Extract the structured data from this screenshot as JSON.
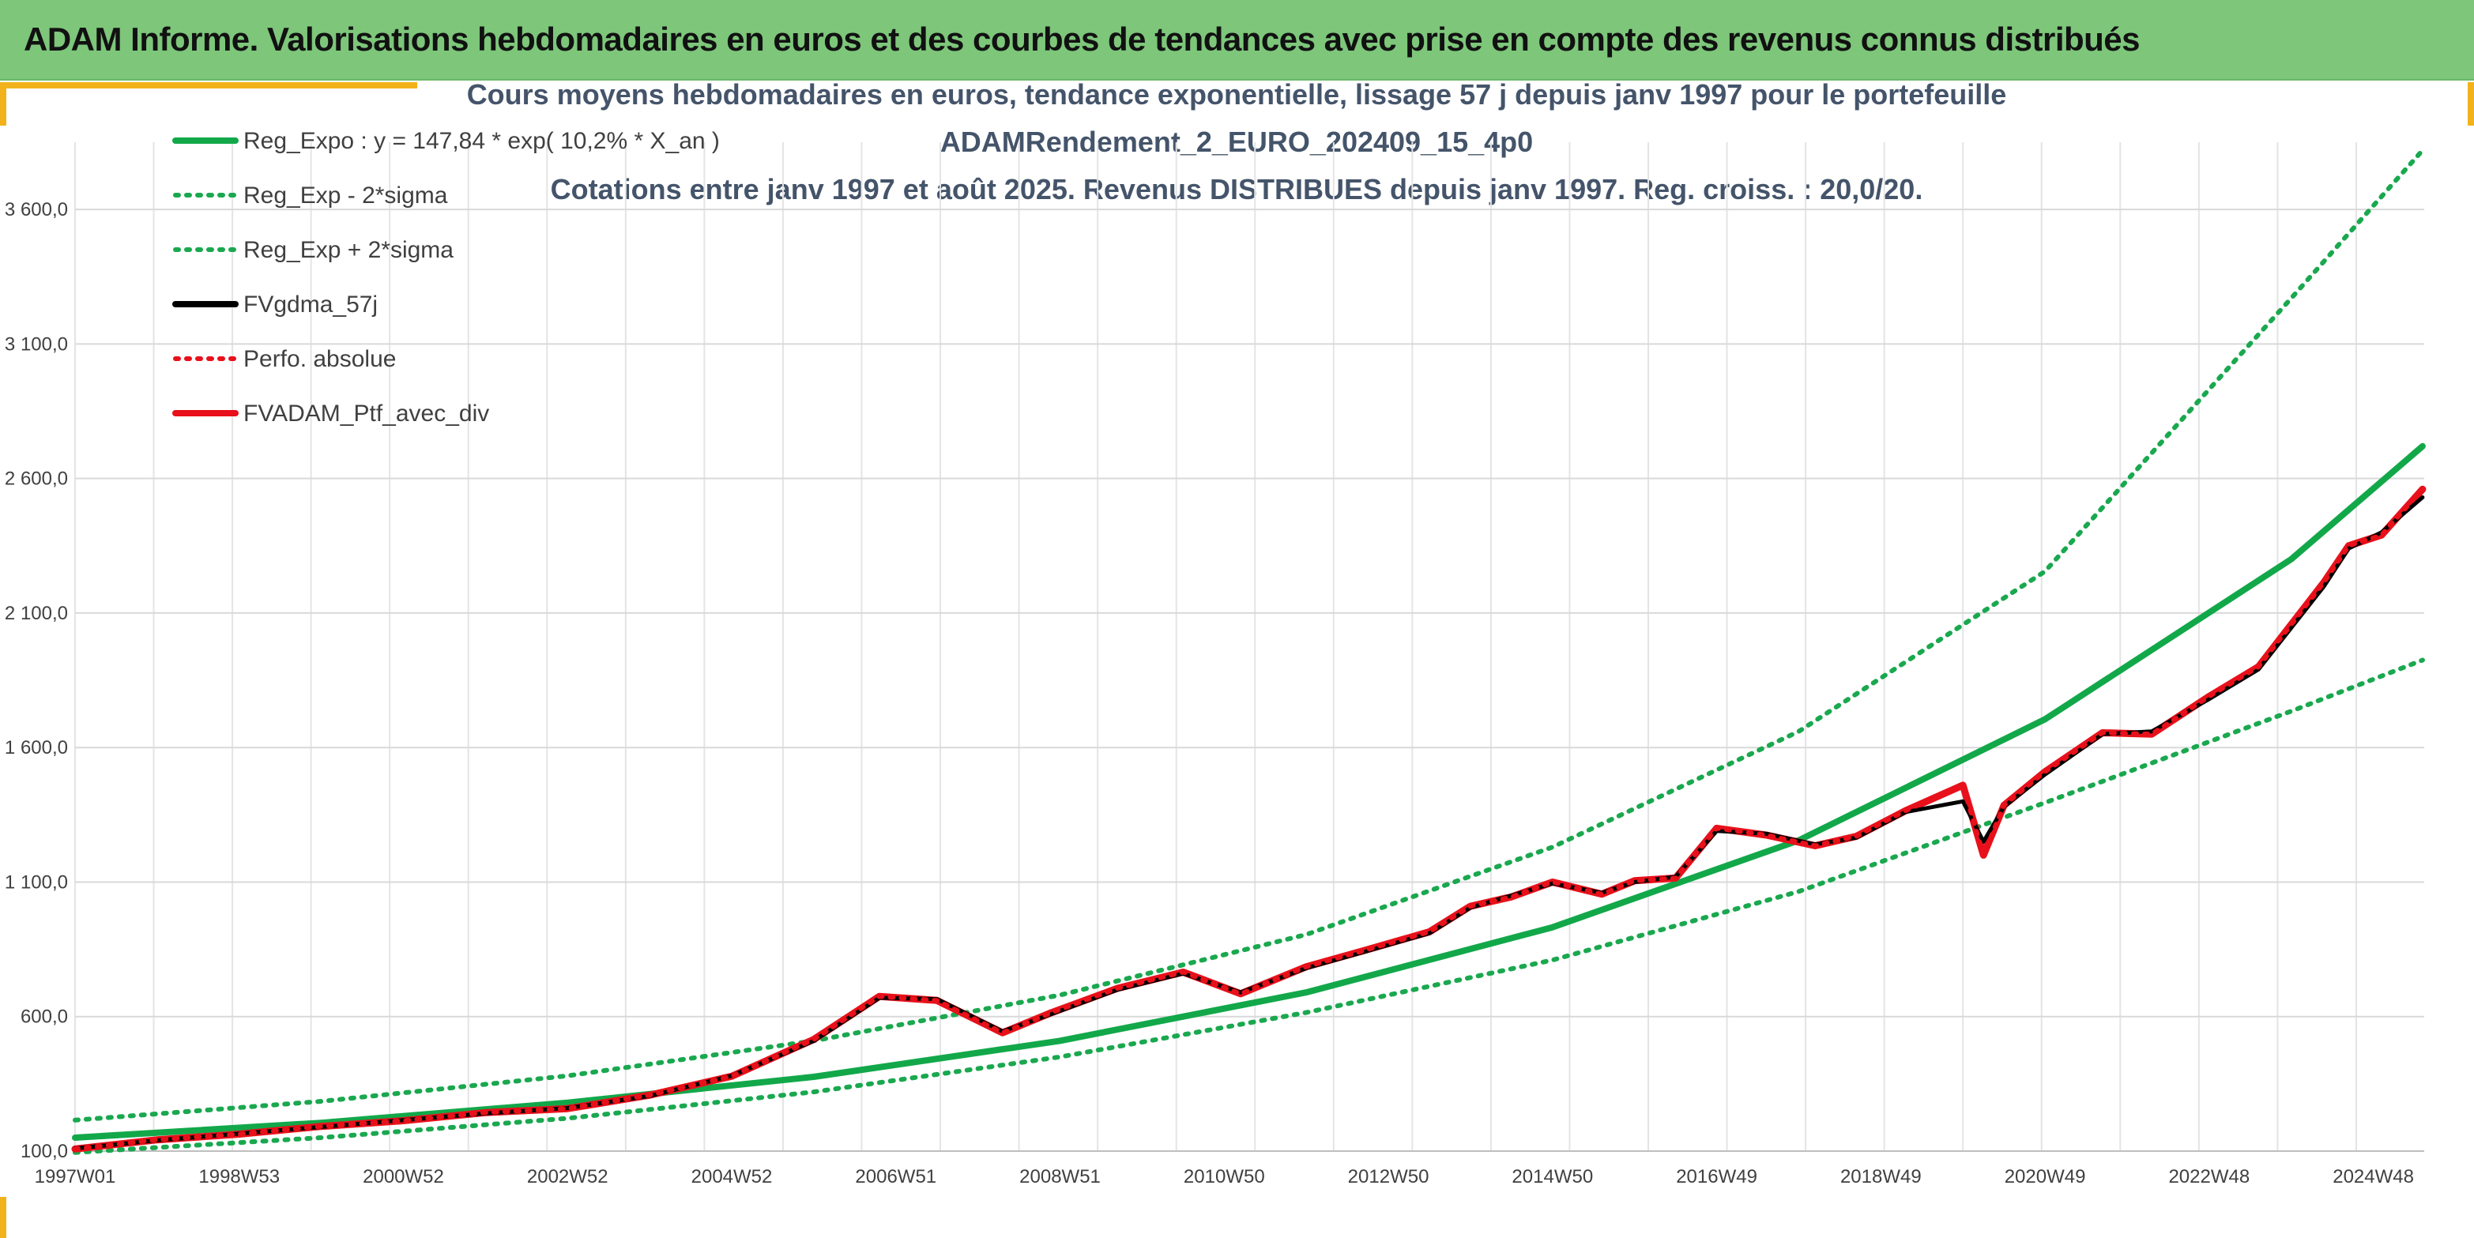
{
  "banner": {
    "title": "ADAM Informe. Valorisations hebdomadaires en euros et des courbes de tendances avec prise en compte des revenus connus distribués"
  },
  "colors": {
    "banner_bg": "#7dc67a",
    "accent_corner": "#f2b21b",
    "reg_expo": "#12a84a",
    "reg_bands": "#1aa84f",
    "fvgdma": "#000000",
    "perfo": "#e8101a",
    "ptf": "#e8101a"
  },
  "chart_data": {
    "type": "line",
    "title_lines": [
      "Cours moyens hebdomadaires en euros, tendance exponentielle, lissage 57 j depuis janv 1997 pour le portefeuille",
      "ADAMRendement_2_EURO_202409_15_4p0",
      "Cotations entre janv 1997 et août 2025. Revenus DISTRIBUES depuis janv 1997. Reg. croiss. : 20,0/20."
    ],
    "xlabel": "",
    "ylabel": "",
    "x_range_years": [
      1997.0,
      2025.62
    ],
    "ylim": [
      100,
      3850
    ],
    "x_tick_labels": [
      "1997W01",
      "1998W53",
      "2000W52",
      "2002W52",
      "2004W52",
      "2006W51",
      "2008W51",
      "2010W50",
      "2012W50",
      "2014W50",
      "2016W49",
      "2018W49",
      "2020W49",
      "2022W48",
      "2024W48"
    ],
    "y_ticks": [
      100,
      600,
      1100,
      1600,
      2100,
      2600,
      3100,
      3600
    ],
    "y_tick_labels": [
      "100,0",
      "600,0",
      "1 100,0",
      "1 600,0",
      "2 100,0",
      "2 600,0",
      "3 100,0",
      "3 600,0"
    ],
    "grid": true,
    "legend_position": "top-left",
    "series": [
      {
        "name": "Reg_Expo : y = 147,84 * exp( 10,2% *  X_an )",
        "style": "solid",
        "color": "#12a84a",
        "x": [
          1997,
          2000,
          2003,
          2006,
          2009,
          2012,
          2015,
          2018,
          2021,
          2024,
          2025.6
        ],
        "y": [
          150,
          205,
          280,
          376,
          510,
          690,
          932,
          1255,
          1705,
          2300,
          2720
        ]
      },
      {
        "name": "Reg_Exp - 2*sigma",
        "style": "dotted",
        "color": "#1aa84f",
        "x": [
          1997,
          2000,
          2003,
          2006,
          2009,
          2012,
          2015,
          2018,
          2021,
          2024,
          2025.6
        ],
        "y": [
          95,
          150,
          222,
          320,
          450,
          615,
          810,
          1065,
          1395,
          1735,
          1925
        ]
      },
      {
        "name": "Reg_Exp + 2*sigma",
        "style": "dotted",
        "color": "#1aa84f",
        "x": [
          1997,
          2000,
          2003,
          2006,
          2009,
          2012,
          2015,
          2018,
          2021,
          2024,
          2025.6
        ],
        "y": [
          215,
          285,
          380,
          510,
          680,
          905,
          1230,
          1660,
          2255,
          3270,
          3820
        ]
      },
      {
        "name": "FVgdma_57j",
        "style": "solid",
        "color": "#000000",
        "x": [
          1997,
          1998,
          1999,
          2000,
          2001,
          2002,
          2003,
          2004,
          2005,
          2006,
          2006.8,
          2007.5,
          2008.3,
          2008.9,
          2009.7,
          2010.5,
          2011.2,
          2012,
          2012.7,
          2013.5,
          2014,
          2014.5,
          2015,
          2015.6,
          2016,
          2016.5,
          2017,
          2017.6,
          2018.2,
          2018.7,
          2019.3,
          2020,
          2020.25,
          2020.5,
          2021,
          2021.7,
          2022.3,
          2023,
          2023.6,
          2024.4,
          2024.7,
          2025.1,
          2025.6
        ],
        "y": [
          110,
          140,
          165,
          190,
          215,
          240,
          260,
          305,
          380,
          510,
          670,
          665,
          545,
          610,
          700,
          760,
          690,
          780,
          840,
          910,
          1005,
          1050,
          1095,
          1060,
          1100,
          1120,
          1290,
          1280,
          1240,
          1265,
          1360,
          1400,
          1250,
          1380,
          1500,
          1650,
          1660,
          1780,
          1890,
          2200,
          2340,
          2400,
          2530
        ]
      },
      {
        "name": "Perfo. absolue",
        "style": "dotted",
        "color": "#e8101a",
        "x": [
          1997,
          1998,
          1999,
          2000,
          2001,
          2002,
          2003,
          2004,
          2005,
          2006,
          2006.8,
          2007.5,
          2008.3,
          2008.9,
          2009.7,
          2010.5,
          2011.2,
          2012,
          2012.7,
          2013.5,
          2014,
          2014.5,
          2015,
          2015.6,
          2016,
          2016.5,
          2017,
          2017.6,
          2018.2,
          2018.7,
          2019.3,
          2020,
          2020.25,
          2020.5,
          2021,
          2021.7,
          2022.3,
          2023,
          2023.6,
          2024.4,
          2024.7,
          2025.1,
          2025.6
        ],
        "y": [
          108,
          142,
          163,
          192,
          213,
          243,
          258,
          308,
          378,
          515,
          675,
          660,
          540,
          615,
          705,
          765,
          685,
          785,
          845,
          915,
          1010,
          1045,
          1100,
          1055,
          1105,
          1115,
          1300,
          1275,
          1235,
          1270,
          1365,
          1460,
          1200,
          1385,
          1510,
          1655,
          1650,
          1790,
          1900,
          2215,
          2350,
          2390,
          2560
        ]
      },
      {
        "name": "FVADAM_Ptf_avec_div",
        "style": "solid",
        "color": "#e8101a",
        "x": [
          1997,
          1998,
          1999,
          2000,
          2001,
          2002,
          2003,
          2004,
          2005,
          2006,
          2006.8,
          2007.5,
          2008.3,
          2008.9,
          2009.7,
          2010.5,
          2011.2,
          2012,
          2012.7,
          2013.5,
          2014,
          2014.5,
          2015,
          2015.6,
          2016,
          2016.5,
          2017,
          2017.6,
          2018.2,
          2018.7,
          2019.3,
          2020,
          2020.25,
          2020.5,
          2021,
          2021.7,
          2022.3,
          2023,
          2023.6,
          2024.4,
          2024.7,
          2025.1,
          2025.6
        ],
        "y": [
          108,
          142,
          163,
          192,
          213,
          243,
          258,
          308,
          378,
          515,
          675,
          660,
          540,
          615,
          705,
          765,
          685,
          785,
          845,
          915,
          1010,
          1045,
          1100,
          1055,
          1105,
          1115,
          1300,
          1275,
          1235,
          1270,
          1365,
          1460,
          1200,
          1385,
          1510,
          1655,
          1650,
          1790,
          1900,
          2215,
          2350,
          2390,
          2560
        ]
      }
    ]
  }
}
